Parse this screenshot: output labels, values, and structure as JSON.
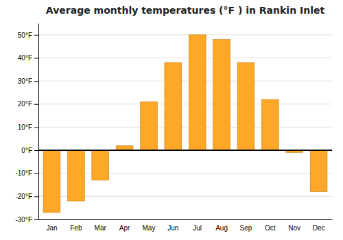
{
  "chart_data": {
    "type": "bar",
    "title": "Average monthly temperatures (°F ) in Rankin Inlet",
    "categories": [
      "Jan",
      "Feb",
      "Mar",
      "Apr",
      "May",
      "Jun",
      "Jul",
      "Aug",
      "Sep",
      "Oct",
      "Nov",
      "Dec"
    ],
    "values": [
      -27,
      -22,
      -13,
      2,
      21,
      38,
      50,
      48,
      38,
      22,
      -1,
      -18
    ],
    "color": "#FFA726",
    "ylim": [
      -30,
      55
    ],
    "yticks": [
      {
        "value": -30,
        "label": "-30°F"
      },
      {
        "value": -20,
        "label": "-20°F"
      },
      {
        "value": -10,
        "label": "-10°F"
      },
      {
        "value": 0,
        "label": "0°F"
      },
      {
        "value": 10,
        "label": "10°F"
      },
      {
        "value": 20,
        "label": "20°F"
      },
      {
        "value": 30,
        "label": "30°F"
      },
      {
        "value": 40,
        "label": "40°F"
      },
      {
        "value": 50,
        "label": "50°F"
      }
    ],
    "grid": true
  }
}
